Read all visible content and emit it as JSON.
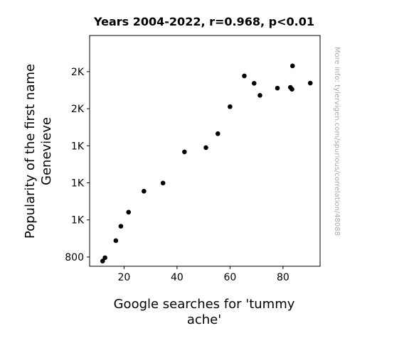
{
  "chart_data": {
    "type": "scatter",
    "title": "Years 2004-2022, r=0.968, p<0.01",
    "xlabel_lines": [
      "Google searches for 'tummy",
      "ache'"
    ],
    "ylabel_lines": [
      "Popularity of the first name",
      "Genevieve"
    ],
    "watermark": "More info: tylervigen.com/spurious/correlation/48088",
    "xlim": [
      7,
      94
    ],
    "ylim": [
      750,
      1995
    ],
    "grid": false,
    "x_ticks": [
      {
        "value": 20,
        "label": "20"
      },
      {
        "value": 40,
        "label": "40"
      },
      {
        "value": 60,
        "label": "60"
      },
      {
        "value": 80,
        "label": "80"
      }
    ],
    "y_ticks": [
      {
        "value": 800,
        "label": "800"
      },
      {
        "value": 1000,
        "label": "1K"
      },
      {
        "value": 1200,
        "label": "1K"
      },
      {
        "value": 1400,
        "label": "1K"
      },
      {
        "value": 1600,
        "label": "2K"
      },
      {
        "value": 1800,
        "label": "2K"
      }
    ],
    "points": [
      {
        "x": 11.9,
        "y": 778
      },
      {
        "x": 12.8,
        "y": 796
      },
      {
        "x": 16.9,
        "y": 888
      },
      {
        "x": 18.8,
        "y": 966
      },
      {
        "x": 21.7,
        "y": 1042
      },
      {
        "x": 27.5,
        "y": 1155
      },
      {
        "x": 34.7,
        "y": 1199
      },
      {
        "x": 42.8,
        "y": 1367
      },
      {
        "x": 50.9,
        "y": 1390
      },
      {
        "x": 55.4,
        "y": 1465
      },
      {
        "x": 60.0,
        "y": 1611
      },
      {
        "x": 65.4,
        "y": 1777
      },
      {
        "x": 69.1,
        "y": 1737
      },
      {
        "x": 71.3,
        "y": 1672
      },
      {
        "x": 77.9,
        "y": 1711
      },
      {
        "x": 82.8,
        "y": 1715
      },
      {
        "x": 83.4,
        "y": 1705
      },
      {
        "x": 83.6,
        "y": 1831
      },
      {
        "x": 90.3,
        "y": 1738
      }
    ]
  }
}
